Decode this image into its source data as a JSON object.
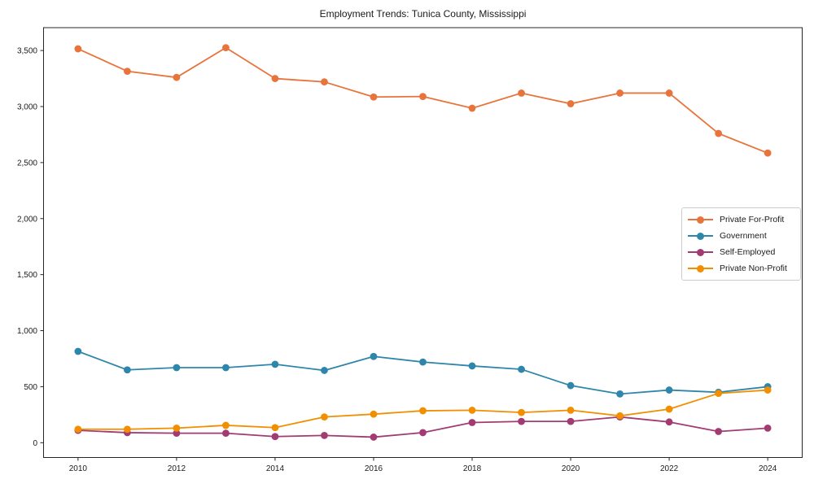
{
  "figure": {
    "title": "Employment Trends: Tunica County, Mississippi"
  },
  "chart_data": {
    "type": "line",
    "title": "Employment Trends: Tunica County, Mississippi",
    "xlabel": "",
    "ylabel": "",
    "x": [
      2010,
      2011,
      2012,
      2013,
      2014,
      2015,
      2016,
      2017,
      2018,
      2019,
      2020,
      2021,
      2022,
      2023,
      2024
    ],
    "series": [
      {
        "name": "Private For-Profit",
        "color": "#E8743B",
        "values": [
          3515,
          3315,
          3260,
          3525,
          3250,
          3220,
          3085,
          3090,
          2985,
          3120,
          3025,
          3120,
          3120,
          2760,
          2585
        ]
      },
      {
        "name": "Government",
        "color": "#2E86AB",
        "values": [
          815,
          650,
          670,
          670,
          700,
          645,
          770,
          720,
          685,
          655,
          510,
          435,
          470,
          450,
          500
        ]
      },
      {
        "name": "Self-Employed",
        "color": "#A23B72",
        "values": [
          110,
          90,
          85,
          85,
          55,
          65,
          50,
          90,
          180,
          190,
          190,
          230,
          185,
          100,
          130
        ]
      },
      {
        "name": "Private Non-Profit",
        "color": "#F18F01",
        "values": [
          120,
          120,
          130,
          155,
          135,
          230,
          255,
          285,
          290,
          270,
          290,
          240,
          300,
          440,
          470
        ]
      }
    ],
    "xlim": [
      2009.3,
      2024.7
    ],
    "ylim": [
      -132,
      3704
    ],
    "xticks": [
      2010,
      2012,
      2014,
      2016,
      2018,
      2020,
      2022,
      2024
    ],
    "xtick_labels": [
      "2010",
      "2012",
      "2014",
      "2016",
      "2018",
      "2020",
      "2022",
      "2024"
    ],
    "yticks": [
      0,
      500,
      1000,
      1500,
      2000,
      2500,
      3000,
      3500
    ],
    "ytick_labels": [
      "0",
      "500",
      "1,000",
      "1,500",
      "2,000",
      "2,500",
      "3,000",
      "3,500"
    ],
    "grid": false,
    "legend_position": "center right",
    "marker": "circle",
    "background": "#ffffff",
    "text_color": "#1a1a1a",
    "spine_color": "#262626"
  }
}
